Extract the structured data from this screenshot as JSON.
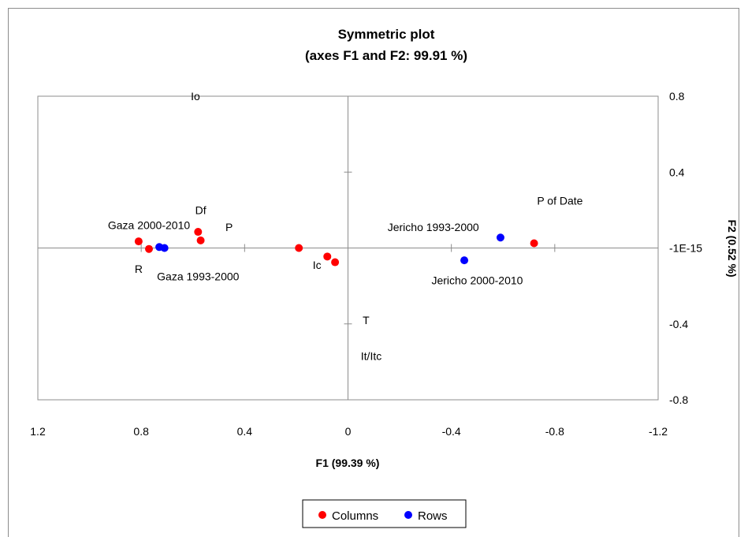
{
  "chart_data": {
    "type": "scatter",
    "title": "Symmetric plot",
    "subtitle": "(axes F1 and F2: 99.91 %)",
    "xlabel": "F1 (99.39 %)",
    "ylabel": "F2 (0.52 %)",
    "xlim": [
      1.2,
      -1.2
    ],
    "ylim": [
      -0.8,
      0.8
    ],
    "x_reversed": true,
    "x_ticks": [
      "1.2",
      "0.8",
      "0.4",
      "0",
      "-0.4",
      "-0.8",
      "-1.2"
    ],
    "y_ticks": [
      "0.8",
      "0.4",
      "-1E-15",
      "-0.4",
      "-0.8"
    ],
    "grid": false,
    "legend_position": "bottom",
    "series": [
      {
        "name": "Columns",
        "color": "#ff0000",
        "x": [
          0.81,
          0.77,
          0.58,
          0.57,
          0.19,
          0.08,
          0.05,
          -0.72
        ],
        "y": [
          0.035,
          -0.005,
          0.085,
          0.04,
          0.0,
          -0.045,
          -0.075,
          0.025
        ]
      },
      {
        "name": "Rows",
        "color": "#0000ff",
        "x": [
          0.73,
          0.71,
          -0.45,
          -0.59
        ],
        "y": [
          0.005,
          0.0,
          -0.065,
          0.055
        ]
      }
    ],
    "annotations": [
      {
        "text": "Io",
        "x": 0.59,
        "y": 0.8
      },
      {
        "text": "Df",
        "x": 0.57,
        "y": 0.2
      },
      {
        "text": "Gaza 2000-2010",
        "x": 0.77,
        "y": 0.12
      },
      {
        "text": "P",
        "x": 0.46,
        "y": 0.11
      },
      {
        "text": "R",
        "x": 0.81,
        "y": -0.11
      },
      {
        "text": "Gaza 1993-2000",
        "x": 0.58,
        "y": -0.15
      },
      {
        "text": "Ic",
        "x": 0.12,
        "y": -0.09
      },
      {
        "text": "T",
        "x": -0.07,
        "y": -0.38
      },
      {
        "text": "It/Itc",
        "x": -0.09,
        "y": -0.57
      },
      {
        "text": "Jericho 1993-2000",
        "x": -0.33,
        "y": 0.11
      },
      {
        "text": "Jericho 2000-2010",
        "x": -0.5,
        "y": -0.17
      },
      {
        "text": "P of Date",
        "x": -0.82,
        "y": 0.25
      }
    ]
  }
}
